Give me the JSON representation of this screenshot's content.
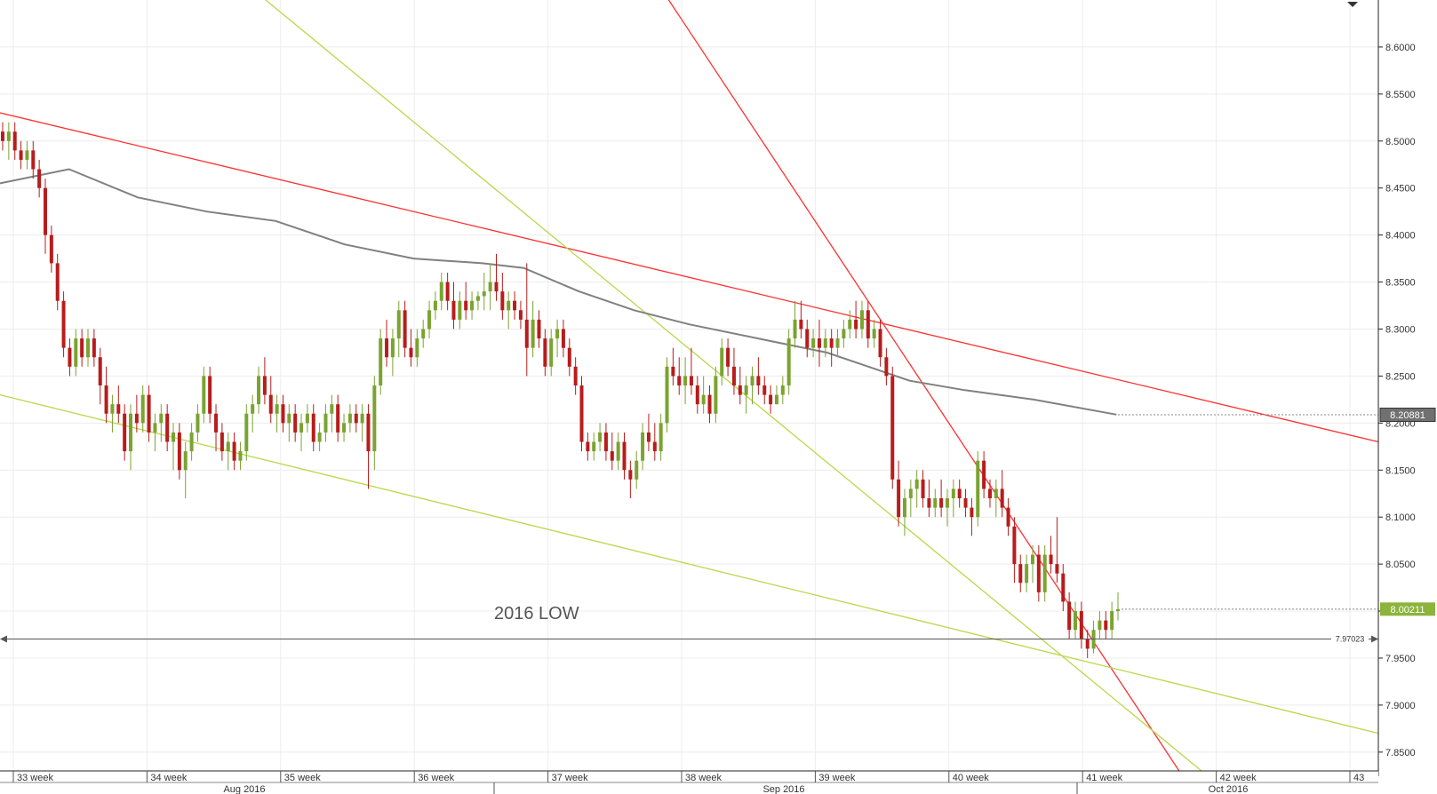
{
  "chart_data": {
    "type": "candlestick",
    "y_ticks": [
      "8.6000",
      "8.5500",
      "8.5000",
      "8.4500",
      "8.4000",
      "8.3500",
      "8.3000",
      "8.2500",
      "8.2000",
      "8.1500",
      "8.1000",
      "8.0500",
      "8.0000",
      "7.9500",
      "7.9000",
      "7.8500"
    ],
    "ylim": [
      7.83,
      8.65
    ],
    "week_labels": [
      "33 week",
      "34 week",
      "35 week",
      "36 week",
      "37 week",
      "38 week",
      "39 week",
      "40 week",
      "41 week",
      "42 week",
      "43"
    ],
    "month_labels": [
      "Aug 2016",
      "Sep 2016",
      "Oct 2016"
    ],
    "annotation": "2016 LOW",
    "horizontal_level": {
      "value": 7.97023,
      "label": "7.97023",
      "color": "#555555"
    },
    "moving_average_tag": {
      "value": 8.20881,
      "label": "8.20881",
      "color": "#707070"
    },
    "last_price_tag": {
      "value": 8.00211,
      "label": "8.00211",
      "color": "#8cb43c"
    },
    "colors": {
      "bull": "#7aa330",
      "bear": "#b81c1c",
      "red_line": "#ff3030",
      "green_line": "#b8d84a",
      "ma": "#808080"
    },
    "trend_lines": [
      {
        "color": "red",
        "x0": 0,
        "y0": 8.53,
        "x1": 1,
        "y1": 8.18
      },
      {
        "color": "red",
        "x0": 0.44,
        "y0": 8.75,
        "x1": 0.86,
        "y1": 7.82
      },
      {
        "color": "green",
        "x0": 0.11,
        "y0": 8.75,
        "x1": 0.88,
        "y1": 7.82
      },
      {
        "color": "green",
        "x0": 0,
        "y0": 8.23,
        "x1": 1,
        "y1": 7.87
      }
    ],
    "moving_average": [
      [
        0,
        8.455
      ],
      [
        0.05,
        8.47
      ],
      [
        0.1,
        8.44
      ],
      [
        0.15,
        8.425
      ],
      [
        0.2,
        8.415
      ],
      [
        0.25,
        8.39
      ],
      [
        0.3,
        8.375
      ],
      [
        0.35,
        8.37
      ],
      [
        0.38,
        8.365
      ],
      [
        0.42,
        8.34
      ],
      [
        0.46,
        8.32
      ],
      [
        0.5,
        8.305
      ],
      [
        0.55,
        8.29
      ],
      [
        0.6,
        8.275
      ],
      [
        0.63,
        8.26
      ],
      [
        0.66,
        8.245
      ],
      [
        0.7,
        8.235
      ],
      [
        0.75,
        8.225
      ],
      [
        0.81,
        8.209
      ]
    ],
    "candles": [
      [
        8.51,
        8.52,
        8.49,
        8.5
      ],
      [
        8.5,
        8.52,
        8.48,
        8.51
      ],
      [
        8.51,
        8.52,
        8.48,
        8.49
      ],
      [
        8.49,
        8.5,
        8.47,
        8.48
      ],
      [
        8.48,
        8.5,
        8.47,
        8.49
      ],
      [
        8.49,
        8.5,
        8.46,
        8.47
      ],
      [
        8.47,
        8.48,
        8.44,
        8.45
      ],
      [
        8.45,
        8.46,
        8.38,
        8.4
      ],
      [
        8.4,
        8.41,
        8.36,
        8.37
      ],
      [
        8.37,
        8.38,
        8.32,
        8.33
      ],
      [
        8.33,
        8.34,
        8.27,
        8.28
      ],
      [
        8.28,
        8.29,
        8.25,
        8.26
      ],
      [
        8.26,
        8.3,
        8.25,
        8.29
      ],
      [
        8.29,
        8.3,
        8.26,
        8.27
      ],
      [
        8.27,
        8.3,
        8.26,
        8.29
      ],
      [
        8.29,
        8.3,
        8.26,
        8.27
      ],
      [
        8.27,
        8.28,
        8.22,
        8.24
      ],
      [
        8.24,
        8.26,
        8.2,
        8.21
      ],
      [
        8.21,
        8.23,
        8.19,
        8.22
      ],
      [
        8.22,
        8.24,
        8.2,
        8.21
      ],
      [
        8.21,
        8.22,
        8.16,
        8.17
      ],
      [
        8.17,
        8.22,
        8.15,
        8.21
      ],
      [
        8.21,
        8.23,
        8.19,
        8.2
      ],
      [
        8.2,
        8.24,
        8.19,
        8.23
      ],
      [
        8.23,
        8.24,
        8.18,
        8.19
      ],
      [
        8.19,
        8.21,
        8.17,
        8.2
      ],
      [
        8.2,
        8.22,
        8.18,
        8.21
      ],
      [
        8.21,
        8.22,
        8.17,
        8.18
      ],
      [
        8.18,
        8.2,
        8.15,
        8.19
      ],
      [
        8.19,
        8.2,
        8.14,
        8.15
      ],
      [
        8.15,
        8.18,
        8.12,
        8.17
      ],
      [
        8.17,
        8.2,
        8.16,
        8.19
      ],
      [
        8.19,
        8.22,
        8.18,
        8.21
      ],
      [
        8.21,
        8.26,
        8.2,
        8.25
      ],
      [
        8.25,
        8.26,
        8.2,
        8.21
      ],
      [
        8.21,
        8.22,
        8.17,
        8.19
      ],
      [
        8.19,
        8.2,
        8.16,
        8.17
      ],
      [
        8.17,
        8.19,
        8.15,
        8.18
      ],
      [
        8.18,
        8.19,
        8.15,
        8.16
      ],
      [
        8.16,
        8.18,
        8.15,
        8.17
      ],
      [
        8.17,
        8.22,
        8.16,
        8.21
      ],
      [
        8.21,
        8.23,
        8.19,
        8.22
      ],
      [
        8.22,
        8.26,
        8.21,
        8.25
      ],
      [
        8.25,
        8.27,
        8.22,
        8.23
      ],
      [
        8.23,
        8.25,
        8.2,
        8.21
      ],
      [
        8.21,
        8.23,
        8.19,
        8.22
      ],
      [
        8.22,
        8.23,
        8.19,
        8.2
      ],
      [
        8.2,
        8.22,
        8.18,
        8.21
      ],
      [
        8.21,
        8.22,
        8.18,
        8.19
      ],
      [
        8.19,
        8.21,
        8.17,
        8.2
      ],
      [
        8.2,
        8.22,
        8.19,
        8.21
      ],
      [
        8.21,
        8.22,
        8.17,
        8.18
      ],
      [
        8.18,
        8.2,
        8.17,
        8.19
      ],
      [
        8.19,
        8.22,
        8.18,
        8.21
      ],
      [
        8.21,
        8.23,
        8.19,
        8.22
      ],
      [
        8.22,
        8.23,
        8.18,
        8.19
      ],
      [
        8.19,
        8.21,
        8.18,
        8.2
      ],
      [
        8.2,
        8.22,
        8.19,
        8.21
      ],
      [
        8.21,
        8.22,
        8.19,
        8.2
      ],
      [
        8.2,
        8.22,
        8.18,
        8.21
      ],
      [
        8.21,
        8.22,
        8.13,
        8.17
      ],
      [
        8.17,
        8.25,
        8.15,
        8.24
      ],
      [
        8.24,
        8.3,
        8.23,
        8.29
      ],
      [
        8.29,
        8.31,
        8.26,
        8.27
      ],
      [
        8.27,
        8.3,
        8.25,
        8.29
      ],
      [
        8.29,
        8.33,
        8.27,
        8.32
      ],
      [
        8.32,
        8.33,
        8.27,
        8.28
      ],
      [
        8.28,
        8.3,
        8.26,
        8.27
      ],
      [
        8.27,
        8.3,
        8.26,
        8.29
      ],
      [
        8.29,
        8.31,
        8.28,
        8.3
      ],
      [
        8.3,
        8.33,
        8.29,
        8.32
      ],
      [
        8.32,
        8.34,
        8.31,
        8.33
      ],
      [
        8.33,
        8.36,
        8.32,
        8.35
      ],
      [
        8.35,
        8.36,
        8.32,
        8.33
      ],
      [
        8.33,
        8.35,
        8.3,
        8.31
      ],
      [
        8.31,
        8.34,
        8.3,
        8.33
      ],
      [
        8.33,
        8.35,
        8.31,
        8.32
      ],
      [
        8.32,
        8.34,
        8.31,
        8.33
      ],
      [
        8.33,
        8.34,
        8.32,
        8.335
      ],
      [
        8.335,
        8.36,
        8.32,
        8.34
      ],
      [
        8.34,
        8.37,
        8.32,
        8.35
      ],
      [
        8.35,
        8.38,
        8.33,
        8.34
      ],
      [
        8.34,
        8.36,
        8.31,
        8.32
      ],
      [
        8.32,
        8.34,
        8.3,
        8.33
      ],
      [
        8.33,
        8.34,
        8.31,
        8.32
      ],
      [
        8.32,
        8.33,
        8.3,
        8.31
      ],
      [
        8.31,
        8.37,
        8.25,
        8.28
      ],
      [
        8.28,
        8.33,
        8.27,
        8.31
      ],
      [
        8.31,
        8.32,
        8.28,
        8.29
      ],
      [
        8.29,
        8.3,
        8.25,
        8.26
      ],
      [
        8.26,
        8.3,
        8.25,
        8.29
      ],
      [
        8.29,
        8.31,
        8.27,
        8.3
      ],
      [
        8.3,
        8.31,
        8.27,
        8.28
      ],
      [
        8.28,
        8.29,
        8.25,
        8.26
      ],
      [
        8.26,
        8.27,
        8.23,
        8.24
      ],
      [
        8.24,
        8.25,
        8.17,
        8.18
      ],
      [
        8.18,
        8.19,
        8.16,
        8.17
      ],
      [
        8.17,
        8.19,
        8.16,
        8.18
      ],
      [
        8.18,
        8.2,
        8.17,
        8.19
      ],
      [
        8.19,
        8.2,
        8.16,
        8.17
      ],
      [
        8.17,
        8.19,
        8.15,
        8.16
      ],
      [
        8.16,
        8.19,
        8.15,
        8.18
      ],
      [
        8.18,
        8.19,
        8.14,
        8.15
      ],
      [
        8.15,
        8.16,
        8.12,
        8.14
      ],
      [
        8.14,
        8.17,
        8.13,
        8.16
      ],
      [
        8.16,
        8.2,
        8.15,
        8.19
      ],
      [
        8.19,
        8.21,
        8.17,
        8.18
      ],
      [
        8.18,
        8.2,
        8.16,
        8.17
      ],
      [
        8.17,
        8.21,
        8.16,
        8.2
      ],
      [
        8.2,
        8.27,
        8.19,
        8.26
      ],
      [
        8.26,
        8.28,
        8.24,
        8.25
      ],
      [
        8.25,
        8.27,
        8.23,
        8.24
      ],
      [
        8.24,
        8.27,
        8.22,
        8.25
      ],
      [
        8.25,
        8.28,
        8.23,
        8.24
      ],
      [
        8.24,
        8.25,
        8.21,
        8.22
      ],
      [
        8.22,
        8.25,
        8.21,
        8.23
      ],
      [
        8.23,
        8.24,
        8.2,
        8.21
      ],
      [
        8.21,
        8.26,
        8.2,
        8.25
      ],
      [
        8.25,
        8.29,
        8.24,
        8.28
      ],
      [
        8.28,
        8.29,
        8.25,
        8.26
      ],
      [
        8.26,
        8.28,
        8.23,
        8.24
      ],
      [
        8.24,
        8.26,
        8.22,
        8.23
      ],
      [
        8.23,
        8.25,
        8.21,
        8.24
      ],
      [
        8.24,
        8.26,
        8.22,
        8.25
      ],
      [
        8.25,
        8.27,
        8.23,
        8.24
      ],
      [
        8.24,
        8.25,
        8.22,
        8.23
      ],
      [
        8.23,
        8.24,
        8.21,
        8.22
      ],
      [
        8.22,
        8.24,
        8.22,
        8.23
      ],
      [
        8.23,
        8.25,
        8.22,
        8.24
      ],
      [
        8.24,
        8.3,
        8.23,
        8.29
      ],
      [
        8.29,
        8.33,
        8.28,
        8.31
      ],
      [
        8.31,
        8.33,
        8.29,
        8.3
      ],
      [
        8.3,
        8.31,
        8.27,
        8.28
      ],
      [
        8.28,
        8.3,
        8.27,
        8.29
      ],
      [
        8.29,
        8.31,
        8.26,
        8.28
      ],
      [
        8.28,
        8.3,
        8.27,
        8.29
      ],
      [
        8.29,
        8.3,
        8.26,
        8.28
      ],
      [
        8.28,
        8.3,
        8.27,
        8.29
      ],
      [
        8.29,
        8.31,
        8.28,
        8.3
      ],
      [
        8.3,
        8.32,
        8.29,
        8.31
      ],
      [
        8.31,
        8.33,
        8.29,
        8.3
      ],
      [
        8.3,
        8.33,
        8.29,
        8.32
      ],
      [
        8.32,
        8.33,
        8.28,
        8.29
      ],
      [
        8.29,
        8.31,
        8.28,
        8.3
      ],
      [
        8.3,
        8.31,
        8.26,
        8.27
      ],
      [
        8.27,
        8.28,
        8.24,
        8.25
      ],
      [
        8.25,
        8.26,
        8.13,
        8.14
      ],
      [
        8.14,
        8.16,
        8.09,
        8.1
      ],
      [
        8.1,
        8.13,
        8.08,
        8.12
      ],
      [
        8.12,
        8.14,
        8.1,
        8.13
      ],
      [
        8.13,
        8.15,
        8.11,
        8.14
      ],
      [
        8.14,
        8.15,
        8.11,
        8.12
      ],
      [
        8.12,
        8.14,
        8.1,
        8.11
      ],
      [
        8.11,
        8.13,
        8.1,
        8.12
      ],
      [
        8.12,
        8.14,
        8.1,
        8.11
      ],
      [
        8.11,
        8.13,
        8.09,
        8.12
      ],
      [
        8.12,
        8.14,
        8.1,
        8.13
      ],
      [
        8.13,
        8.14,
        8.11,
        8.12
      ],
      [
        8.12,
        8.13,
        8.1,
        8.11
      ],
      [
        8.11,
        8.12,
        8.08,
        8.1
      ],
      [
        8.1,
        8.17,
        8.09,
        8.16
      ],
      [
        8.16,
        8.17,
        8.12,
        8.13
      ],
      [
        8.13,
        8.14,
        8.11,
        8.12
      ],
      [
        8.12,
        8.14,
        8.1,
        8.13
      ],
      [
        8.13,
        8.15,
        8.1,
        8.11
      ],
      [
        8.11,
        8.12,
        8.08,
        8.09
      ],
      [
        8.09,
        8.1,
        8.03,
        8.05
      ],
      [
        8.05,
        8.06,
        8.02,
        8.03
      ],
      [
        8.03,
        8.06,
        8.02,
        8.05
      ],
      [
        8.05,
        8.07,
        8.03,
        8.06
      ],
      [
        8.06,
        8.07,
        8.01,
        8.02
      ],
      [
        8.02,
        8.07,
        8.01,
        8.06
      ],
      [
        8.06,
        8.08,
        8.04,
        8.05
      ],
      [
        8.05,
        8.1,
        8.03,
        8.04
      ],
      [
        8.04,
        8.05,
        8.0,
        8.01
      ],
      [
        8.01,
        8.02,
        7.97,
        7.98
      ],
      [
        7.98,
        8.01,
        7.97,
        8.0
      ],
      [
        8.0,
        8.01,
        7.96,
        7.97
      ],
      [
        7.97,
        7.98,
        7.95,
        7.96
      ],
      [
        7.96,
        7.99,
        7.955,
        7.98
      ],
      [
        7.98,
        8.0,
        7.97,
        7.99
      ],
      [
        7.99,
        8.0,
        7.97,
        7.98
      ],
      [
        7.98,
        8.01,
        7.97,
        8.0
      ],
      [
        8.0,
        8.02,
        7.99,
        8.002
      ]
    ]
  }
}
